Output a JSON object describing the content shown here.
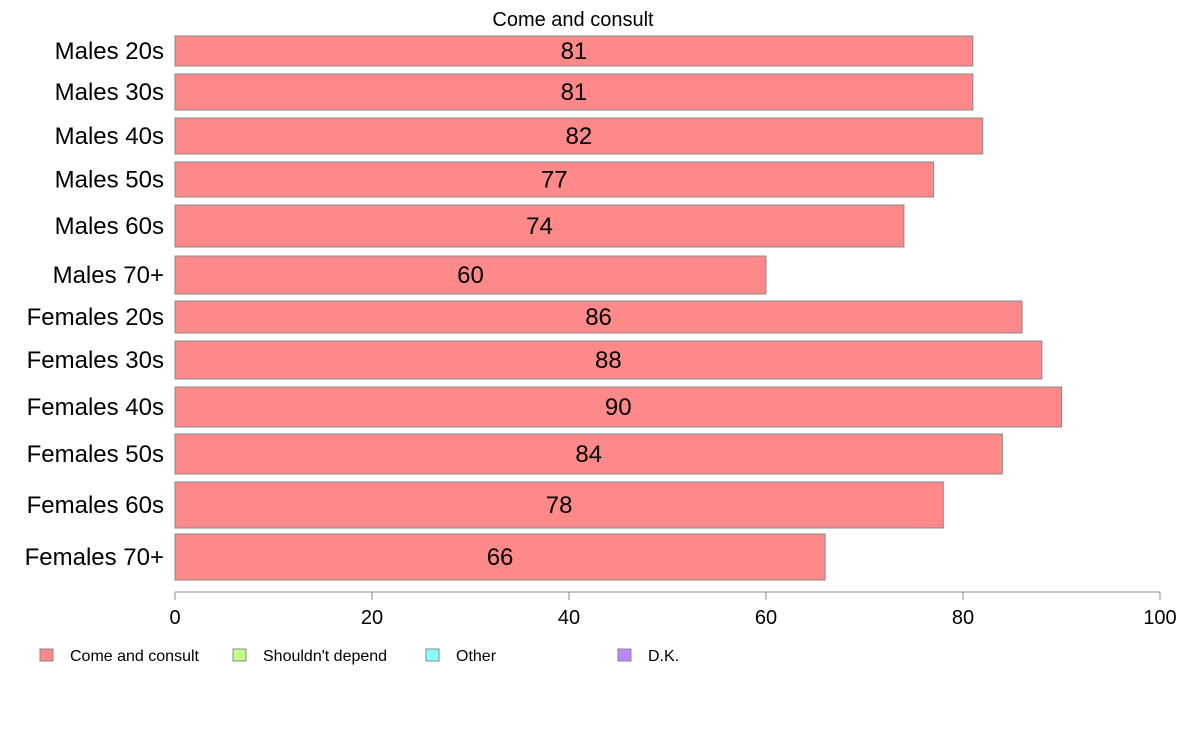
{
  "chart_data": {
    "type": "bar",
    "orientation": "horizontal",
    "title": "Come and consult",
    "categories": [
      "Males 20s",
      "Males 30s",
      "Males 40s",
      "Males 50s",
      "Males 60s",
      "Males 70+",
      "Females 20s",
      "Females 30s",
      "Females 40s",
      "Females 50s",
      "Females 60s",
      "Females 70+"
    ],
    "series": [
      {
        "name": "Come and consult",
        "color": "#ff8888",
        "values": [
          81,
          81,
          82,
          77,
          74,
          60,
          86,
          88,
          90,
          84,
          78,
          66
        ]
      }
    ],
    "xlim": [
      0,
      100
    ],
    "xticks": [
      0,
      20,
      40,
      60,
      80,
      100
    ],
    "grid": false,
    "legend": {
      "placement": "bottom-left",
      "entries": [
        {
          "label": "Come and consult",
          "color": "#ff8888"
        },
        {
          "label": "Shouldn't depend",
          "color": "#c6ff88"
        },
        {
          "label": "Other",
          "color": "#88ffff"
        },
        {
          "label": "D.K.",
          "color": "#bb88ff"
        }
      ]
    },
    "bar_border_color": "#888888",
    "axis_color": "#888888"
  }
}
